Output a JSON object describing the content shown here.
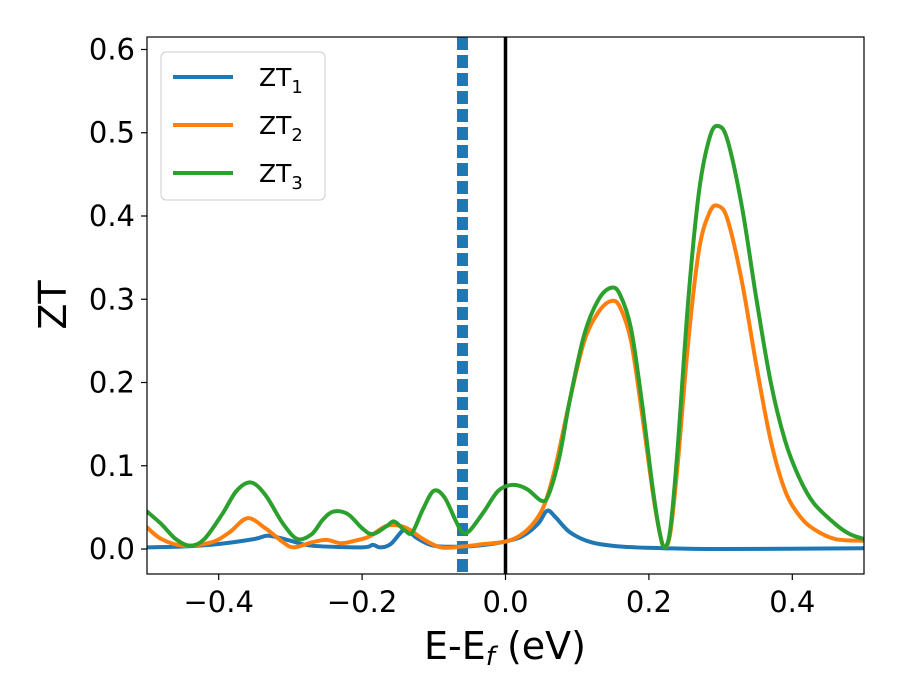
{
  "chart_data": {
    "type": "line",
    "xlabel": {
      "main": "E-E",
      "sub": "f",
      "unit": " (eV)"
    },
    "ylabel": "ZT",
    "xlim": [
      -0.5,
      0.5
    ],
    "ylim": [
      -0.03,
      0.615
    ],
    "x_ticks": [
      -0.4,
      -0.2,
      0.0,
      0.2,
      0.4
    ],
    "x_tick_labels": [
      "−0.4",
      "−0.2",
      "0.0",
      "0.2",
      "0.4"
    ],
    "y_ticks": [
      0.0,
      0.1,
      0.2,
      0.3,
      0.4,
      0.5,
      0.6
    ],
    "y_tick_labels": [
      "0.0",
      "0.1",
      "0.2",
      "0.3",
      "0.4",
      "0.5",
      "0.6"
    ],
    "grid": false,
    "legend_position": "top-left",
    "vertical_lines": [
      {
        "x": 0.0,
        "style": "solid",
        "color": "#000000"
      },
      {
        "x": -0.06,
        "style": "dashed",
        "color": "#1f77b4"
      }
    ],
    "series": [
      {
        "name": "ZT",
        "name_sub": "1",
        "color": "#1f77b4",
        "points": [
          [
            -0.5,
            0.002
          ],
          [
            -0.45,
            0.003
          ],
          [
            -0.4,
            0.006
          ],
          [
            -0.35,
            0.012
          ],
          [
            -0.33,
            0.016
          ],
          [
            -0.3,
            0.01
          ],
          [
            -0.27,
            0.004
          ],
          [
            -0.2,
            0.002
          ],
          [
            -0.185,
            0.005
          ],
          [
            -0.175,
            0.002
          ],
          [
            -0.16,
            0.006
          ],
          [
            -0.14,
            0.024
          ],
          [
            -0.125,
            0.014
          ],
          [
            -0.1,
            0.004
          ],
          [
            -0.06,
            0.003
          ],
          [
            -0.02,
            0.006
          ],
          [
            0.02,
            0.014
          ],
          [
            0.045,
            0.03
          ],
          [
            0.058,
            0.046
          ],
          [
            0.07,
            0.038
          ],
          [
            0.09,
            0.02
          ],
          [
            0.12,
            0.008
          ],
          [
            0.16,
            0.003
          ],
          [
            0.22,
            0.001
          ],
          [
            0.3,
            0.0
          ],
          [
            0.5,
            0.001
          ]
        ]
      },
      {
        "name": "ZT",
        "name_sub": "2",
        "color": "#ff7f0e",
        "points": [
          [
            -0.5,
            0.026
          ],
          [
            -0.48,
            0.012
          ],
          [
            -0.45,
            0.004
          ],
          [
            -0.41,
            0.008
          ],
          [
            -0.385,
            0.02
          ],
          [
            -0.36,
            0.037
          ],
          [
            -0.335,
            0.025
          ],
          [
            -0.31,
            0.008
          ],
          [
            -0.295,
            0.002
          ],
          [
            -0.27,
            0.008
          ],
          [
            -0.25,
            0.011
          ],
          [
            -0.23,
            0.007
          ],
          [
            -0.21,
            0.01
          ],
          [
            -0.19,
            0.015
          ],
          [
            -0.165,
            0.028
          ],
          [
            -0.14,
            0.026
          ],
          [
            -0.115,
            0.012
          ],
          [
            -0.09,
            0.002
          ],
          [
            -0.06,
            0.003
          ],
          [
            -0.03,
            0.006
          ],
          [
            0.0,
            0.009
          ],
          [
            0.02,
            0.016
          ],
          [
            0.04,
            0.032
          ],
          [
            0.055,
            0.055
          ],
          [
            0.07,
            0.1
          ],
          [
            0.09,
            0.18
          ],
          [
            0.11,
            0.25
          ],
          [
            0.13,
            0.285
          ],
          [
            0.148,
            0.298
          ],
          [
            0.16,
            0.29
          ],
          [
            0.175,
            0.25
          ],
          [
            0.19,
            0.165
          ],
          [
            0.205,
            0.07
          ],
          [
            0.215,
            0.02
          ],
          [
            0.222,
            0.002
          ],
          [
            0.23,
            0.02
          ],
          [
            0.24,
            0.1
          ],
          [
            0.255,
            0.25
          ],
          [
            0.27,
            0.36
          ],
          [
            0.285,
            0.405
          ],
          [
            0.297,
            0.412
          ],
          [
            0.31,
            0.395
          ],
          [
            0.33,
            0.32
          ],
          [
            0.35,
            0.22
          ],
          [
            0.37,
            0.13
          ],
          [
            0.39,
            0.07
          ],
          [
            0.41,
            0.04
          ],
          [
            0.43,
            0.024
          ],
          [
            0.46,
            0.012
          ],
          [
            0.5,
            0.01
          ]
        ]
      },
      {
        "name": "ZT",
        "name_sub": "3",
        "color": "#2ca02c",
        "points": [
          [
            -0.5,
            0.045
          ],
          [
            -0.48,
            0.03
          ],
          [
            -0.46,
            0.012
          ],
          [
            -0.44,
            0.004
          ],
          [
            -0.42,
            0.012
          ],
          [
            -0.395,
            0.042
          ],
          [
            -0.375,
            0.07
          ],
          [
            -0.355,
            0.08
          ],
          [
            -0.335,
            0.065
          ],
          [
            -0.31,
            0.03
          ],
          [
            -0.29,
            0.012
          ],
          [
            -0.27,
            0.018
          ],
          [
            -0.255,
            0.035
          ],
          [
            -0.24,
            0.045
          ],
          [
            -0.22,
            0.042
          ],
          [
            -0.2,
            0.025
          ],
          [
            -0.185,
            0.018
          ],
          [
            -0.165,
            0.028
          ],
          [
            -0.155,
            0.033
          ],
          [
            -0.14,
            0.022
          ],
          [
            -0.13,
            0.02
          ],
          [
            -0.115,
            0.048
          ],
          [
            -0.1,
            0.07
          ],
          [
            -0.085,
            0.062
          ],
          [
            -0.07,
            0.035
          ],
          [
            -0.06,
            0.02
          ],
          [
            -0.05,
            0.022
          ],
          [
            -0.03,
            0.045
          ],
          [
            -0.01,
            0.07
          ],
          [
            0.01,
            0.077
          ],
          [
            0.03,
            0.072
          ],
          [
            0.05,
            0.058
          ],
          [
            0.06,
            0.065
          ],
          [
            0.075,
            0.11
          ],
          [
            0.09,
            0.18
          ],
          [
            0.11,
            0.258
          ],
          [
            0.13,
            0.3
          ],
          [
            0.148,
            0.314
          ],
          [
            0.16,
            0.305
          ],
          [
            0.175,
            0.265
          ],
          [
            0.19,
            0.178
          ],
          [
            0.205,
            0.075
          ],
          [
            0.215,
            0.02
          ],
          [
            0.222,
            0.002
          ],
          [
            0.23,
            0.025
          ],
          [
            0.24,
            0.12
          ],
          [
            0.255,
            0.3
          ],
          [
            0.27,
            0.43
          ],
          [
            0.285,
            0.495
          ],
          [
            0.297,
            0.508
          ],
          [
            0.31,
            0.49
          ],
          [
            0.33,
            0.41
          ],
          [
            0.35,
            0.3
          ],
          [
            0.37,
            0.2
          ],
          [
            0.39,
            0.13
          ],
          [
            0.41,
            0.085
          ],
          [
            0.43,
            0.055
          ],
          [
            0.46,
            0.03
          ],
          [
            0.48,
            0.018
          ],
          [
            0.5,
            0.012
          ]
        ]
      }
    ]
  }
}
